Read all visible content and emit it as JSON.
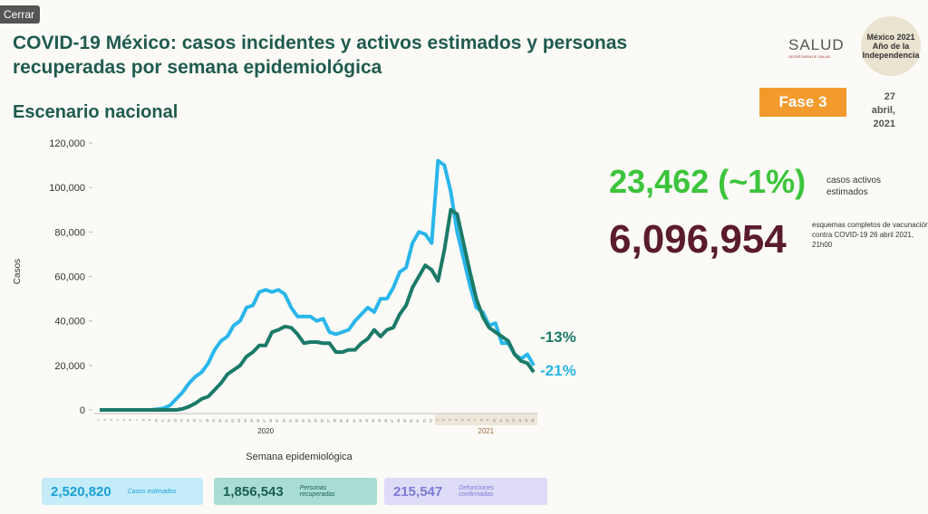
{
  "close_button": "Cerrar",
  "header": {
    "title": "COVID-19 México: casos incidentes y activos estimados y personas recuperadas por semana epidemiológica",
    "subtitle": "Escenario nacional",
    "phase": "Fase 3",
    "date": "27 abril, 2021",
    "logo_salud": "SALUD",
    "logo_salud_sub": "SECRETARÍA DE SALUD",
    "logo_2021": "México 2021 Año de la Independencia"
  },
  "indicators": {
    "active_cases": "23,462 (~1%)",
    "active_cases_label": "casos activos estimados",
    "vaccination": "6,096,954",
    "vaccination_label": "esquemas completos de vacunación contra COVID-19 26 abril 2021, 21h00"
  },
  "summary": {
    "totals": [
      "2,520,820",
      "1,856,543",
      "215,547"
    ],
    "deaths_label": "Defunciones confirmadas"
  },
  "chart_data": {
    "type": "line",
    "y_label": "Casos",
    "x_label": "Semana epidemiológica",
    "categories": [
      "1",
      "2",
      "3",
      "4",
      "5",
      "6",
      "7",
      "8",
      "9",
      "10",
      "11",
      "12",
      "13",
      "14",
      "15",
      "16",
      "17",
      "18",
      "19",
      "20",
      "21",
      "22",
      "23",
      "24",
      "25",
      "26",
      "27",
      "28",
      "29",
      "30",
      "31",
      "32",
      "33",
      "34",
      "35",
      "36",
      "37",
      "38",
      "39",
      "40",
      "41",
      "42",
      "43",
      "44",
      "45",
      "46",
      "47",
      "48",
      "49",
      "50",
      "51",
      "52",
      "53",
      "1",
      "2",
      "3",
      "4",
      "5",
      "6",
      "7",
      "8",
      "9",
      "10",
      "11",
      "12",
      "13",
      "14",
      "15",
      "16"
    ],
    "year_labels": [
      "2020",
      "2021"
    ],
    "series": [
      {
        "name": "Casos estimados",
        "color": "#29b6ea",
        "values": [
          0,
          0,
          0,
          0,
          0,
          0,
          0,
          0,
          0,
          300,
          800,
          2000,
          5000,
          8000,
          12000,
          15000,
          17000,
          21000,
          27000,
          31000,
          33000,
          38000,
          40000,
          46000,
          47000,
          53000,
          54000,
          53000,
          54000,
          52000,
          46000,
          42000,
          42000,
          42000,
          40000,
          41000,
          35000,
          34000,
          35000,
          36000,
          40000,
          43000,
          46000,
          44000,
          50000,
          50000,
          55000,
          62000,
          64000,
          75000,
          80000,
          79000,
          75000,
          112000,
          110000,
          98000,
          80000,
          68000,
          56000,
          46000,
          44000,
          38000,
          39000,
          30000,
          30000,
          25000,
          23000,
          25000,
          20000
        ]
      },
      {
        "name": "Personas recuperadas",
        "color": "#1b7a68",
        "values": [
          0,
          0,
          0,
          0,
          0,
          0,
          0,
          0,
          0,
          0,
          0,
          0,
          0,
          500,
          1500,
          3000,
          5000,
          6000,
          9000,
          12000,
          16000,
          18000,
          20000,
          24000,
          26000,
          29000,
          29000,
          35000,
          36000,
          37500,
          37000,
          34000,
          30000,
          30500,
          30500,
          30000,
          30000,
          26000,
          26000,
          27000,
          27000,
          30000,
          32000,
          36000,
          33000,
          36000,
          37000,
          43000,
          47000,
          55000,
          60000,
          65000,
          63000,
          58000,
          72000,
          90000,
          88000,
          75000,
          62000,
          50000,
          42000,
          37000,
          35000,
          33000,
          31000,
          25000,
          22000,
          21000,
          17000
        ]
      }
    ],
    "annotations": [
      "-13%",
      "-21%"
    ],
    "ylim": [
      0,
      120000
    ],
    "yticks": [
      0,
      {
        "value": 20000,
        "label": "20,000"
      },
      {
        "value": 40000,
        "label": "40,000"
      },
      {
        "value": 60000,
        "label": "60,000"
      },
      {
        "value": 80000,
        "label": "80,000"
      },
      {
        "value": 100000,
        "label": "100,000"
      },
      {
        "value": 120000,
        "label": "120,000"
      }
    ],
    "grid": false
  }
}
